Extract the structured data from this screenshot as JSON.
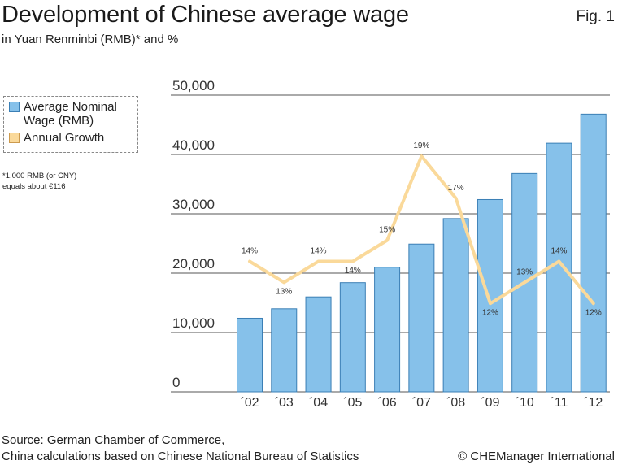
{
  "header": {
    "title": "Development of Chinese average wage",
    "subtitle": "in Yuan Renminbi (RMB)* and %",
    "fig_label": "Fig. 1"
  },
  "legend": {
    "wage": "Average Nominal Wage (RMB)",
    "growth": "Annual Growth"
  },
  "footnote": {
    "line1": "*1,000 RMB (or CNY)",
    "line2": "equals about €116"
  },
  "footer": {
    "source_line1": "Source: German Chamber of Commerce,",
    "source_line2": "China calculations based on Chinese National Bureau of Statistics",
    "credit": "© CHEManager International"
  },
  "colors": {
    "bar_fill": "#86c1ea",
    "bar_stroke": "#3b7fb5",
    "line": "#fad99a",
    "grid": "#555555"
  },
  "chart_data": {
    "type": "bar",
    "categories": [
      "´02",
      "´03",
      "´04",
      "´05",
      "´06",
      "´07",
      "´08",
      "´09",
      "´10",
      "´11",
      "´12"
    ],
    "series": [
      {
        "name": "Average Nominal Wage (RMB)",
        "type": "bar",
        "values": [
          12400,
          14000,
          16000,
          18400,
          21000,
          24900,
          29200,
          32400,
          36800,
          41900,
          46800
        ]
      }
    ],
    "growth": {
      "name": "Annual Growth",
      "type": "line",
      "values": [
        14,
        13,
        14,
        14,
        15,
        19,
        17,
        12,
        13,
        14,
        12
      ],
      "labels": [
        "14%",
        "13%",
        "14%",
        "14%",
        "15%",
        "19%",
        "17%",
        "12%",
        "13%",
        "14%",
        "12%"
      ]
    },
    "ylim": [
      0,
      50000
    ],
    "yticks": [
      0,
      10000,
      20000,
      30000,
      40000,
      50000
    ],
    "ytick_labels": [
      "0",
      "10,000",
      "20,000",
      "30,000",
      "40,000",
      "50,000"
    ],
    "grid": true
  }
}
